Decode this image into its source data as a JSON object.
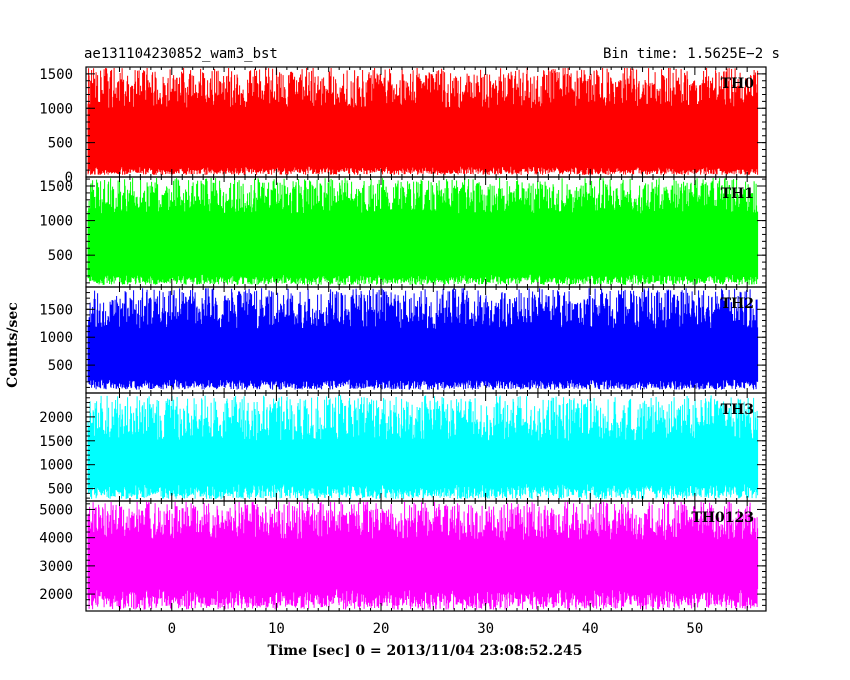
{
  "header": {
    "title": "ae131104230852_wam3_bst",
    "bin_time": "Bin time: 1.5625E−2 s"
  },
  "chart_data": {
    "type": "line",
    "xlabel": "Time [sec] 0 = 2013/11/04 23:08:52.245",
    "ylabel": "Counts/sec",
    "xlim": [
      -8.2,
      56.8
    ],
    "x_ticks": [
      0,
      10,
      20,
      30,
      40,
      50
    ],
    "x_tick_labels": [
      "0",
      "10",
      "20",
      "30",
      "40",
      "50"
    ],
    "data_x_range": [
      -8.0,
      56.0
    ],
    "panels": [
      {
        "name": "TH0",
        "color": "#ff0000",
        "ylim": [
          0,
          1600
        ],
        "yticks": [
          0,
          500,
          1000,
          1500
        ],
        "ytick_labels": [
          "0",
          "500",
          "1000",
          "1500"
        ],
        "envelope_low": [
          30,
          150
        ],
        "envelope_high": [
          1000,
          1600
        ]
      },
      {
        "name": "TH1",
        "color": "#00ff00",
        "ylim": [
          40,
          1630
        ],
        "yticks": [
          500,
          1000,
          1500
        ],
        "ytick_labels": [
          "500",
          "1000",
          "1500"
        ],
        "envelope_low": [
          70,
          220
        ],
        "envelope_high": [
          1100,
          1620
        ]
      },
      {
        "name": "TH2",
        "color": "#0000ff",
        "ylim": [
          0,
          1900
        ],
        "yticks": [
          500,
          1000,
          1500
        ],
        "ytick_labels": [
          "500",
          "1000",
          "1500"
        ],
        "envelope_low": [
          60,
          250
        ],
        "envelope_high": [
          1150,
          1880
        ]
      },
      {
        "name": "TH3",
        "color": "#00ffff",
        "ylim": [
          240,
          2500
        ],
        "yticks": [
          500,
          1000,
          1500,
          2000
        ],
        "ytick_labels": [
          "500",
          "1000",
          "1500",
          "2000"
        ],
        "envelope_low": [
          280,
          600
        ],
        "envelope_high": [
          1500,
          2450
        ]
      },
      {
        "name": "TH0123",
        "color": "#ff00ff",
        "ylim": [
          1400,
          5300
        ],
        "yticks": [
          2000,
          3000,
          4000,
          5000
        ],
        "ytick_labels": [
          "2000",
          "3000",
          "4000",
          "5000"
        ],
        "envelope_low": [
          1450,
          2200
        ],
        "envelope_high": [
          3900,
          5300
        ]
      }
    ]
  }
}
